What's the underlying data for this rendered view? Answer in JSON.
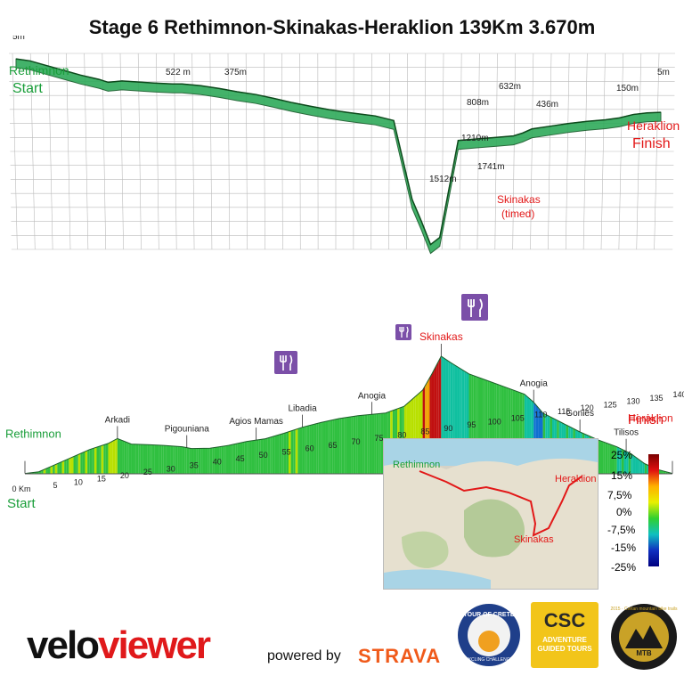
{
  "title": "Stage 6 Rethimnon-Skinakas-Heraklion 139Km 3.670m",
  "top_profile": {
    "start_name": "Rethimnon",
    "start_label": "Start",
    "start_elev": "5m",
    "finish_name": "Heraklion",
    "finish_label": "Finish",
    "finish_elev": "5m",
    "summit_name": "Skinakas",
    "summit_note": "(timed)",
    "elevation_labels": [
      "522 m",
      "375m",
      "808m",
      "632m",
      "436m",
      "150m",
      "1210m",
      "1741m",
      "1512m"
    ]
  },
  "chart_data": {
    "type": "area",
    "title": "Stage 6 Rethimnon-Skinakas-Heraklion 139Km 3.670m",
    "x_ticks": [
      0,
      5,
      10,
      15,
      20,
      25,
      30,
      35,
      40,
      45,
      50,
      55,
      60,
      65,
      70,
      75,
      80,
      85,
      90,
      95,
      100,
      105,
      110,
      115,
      120,
      125,
      130,
      135,
      140
    ],
    "x_first_label": "0 Km",
    "xlim": [
      0,
      140
    ],
    "series": [
      {
        "x": [
          0,
          3,
          6,
          10,
          14,
          18,
          20,
          23,
          27,
          30,
          34,
          36,
          40,
          44,
          48,
          52,
          56,
          60,
          64,
          68,
          72,
          75,
          78,
          82,
          86,
          88,
          90,
          92,
          96,
          100,
          104,
          108,
          110,
          112,
          116,
          120,
          124,
          128,
          131,
          134,
          137,
          140
        ],
        "y": [
          5,
          30,
          120,
          240,
          360,
          450,
          522,
          440,
          430,
          420,
          400,
          375,
          380,
          420,
          480,
          520,
          600,
          690,
          760,
          820,
          860,
          880,
          900,
          1000,
          1240,
          1480,
          1741,
          1650,
          1480,
          1380,
          1280,
          1180,
          1060,
          900,
          760,
          620,
          500,
          400,
          300,
          150,
          60,
          5
        ]
      }
    ],
    "places": [
      {
        "name": "Rethimnon",
        "km": 0
      },
      {
        "name": "Arkadi",
        "km": 20
      },
      {
        "name": "Pigouniana",
        "km": 35
      },
      {
        "name": "Agios Mamas",
        "km": 50
      },
      {
        "name": "Libadia",
        "km": 60
      },
      {
        "name": "Anogia",
        "km": 75
      },
      {
        "name": "Skinakas",
        "km": 90
      },
      {
        "name": "Anogia",
        "km": 110
      },
      {
        "name": "Gonies",
        "km": 120
      },
      {
        "name": "Tilisos",
        "km": 130
      },
      {
        "name": "Heraklion",
        "km": 140
      }
    ],
    "start_label": "Start",
    "finish_label": "Finish"
  },
  "gradient_legend": {
    "labels": [
      "25%",
      "15%",
      "7,5%",
      "0%",
      "-7,5%",
      "-15%",
      "-25%"
    ],
    "colors": [
      "#7a0000",
      "#e01010",
      "#ffb000",
      "#e8f000",
      "#30d030",
      "#10c0c0",
      "#1030c0",
      "#000080"
    ]
  },
  "map": {
    "labels": {
      "rethimnon": "Rethimnon",
      "heraklion": "Heraklion",
      "skinakas": "Skinakas"
    }
  },
  "footer": {
    "veloviewer_a": "velo",
    "veloviewer_b": "viewer",
    "powered_by": "powered by",
    "strava": "STRAVA",
    "badge1": "TOUR OF CRETE",
    "badge1_sub": "CYCLING CHALLENGE",
    "badge2": "CSC",
    "badge2_sub": "ADVENTURE GUIDED TOURS",
    "badge3": "MTB",
    "badge3_ring": "2015 · Cretan mountain bike trails"
  },
  "colors": {
    "start": "#1a9e3a",
    "finish": "#e21818",
    "accent_food": "#7b4fa8"
  }
}
